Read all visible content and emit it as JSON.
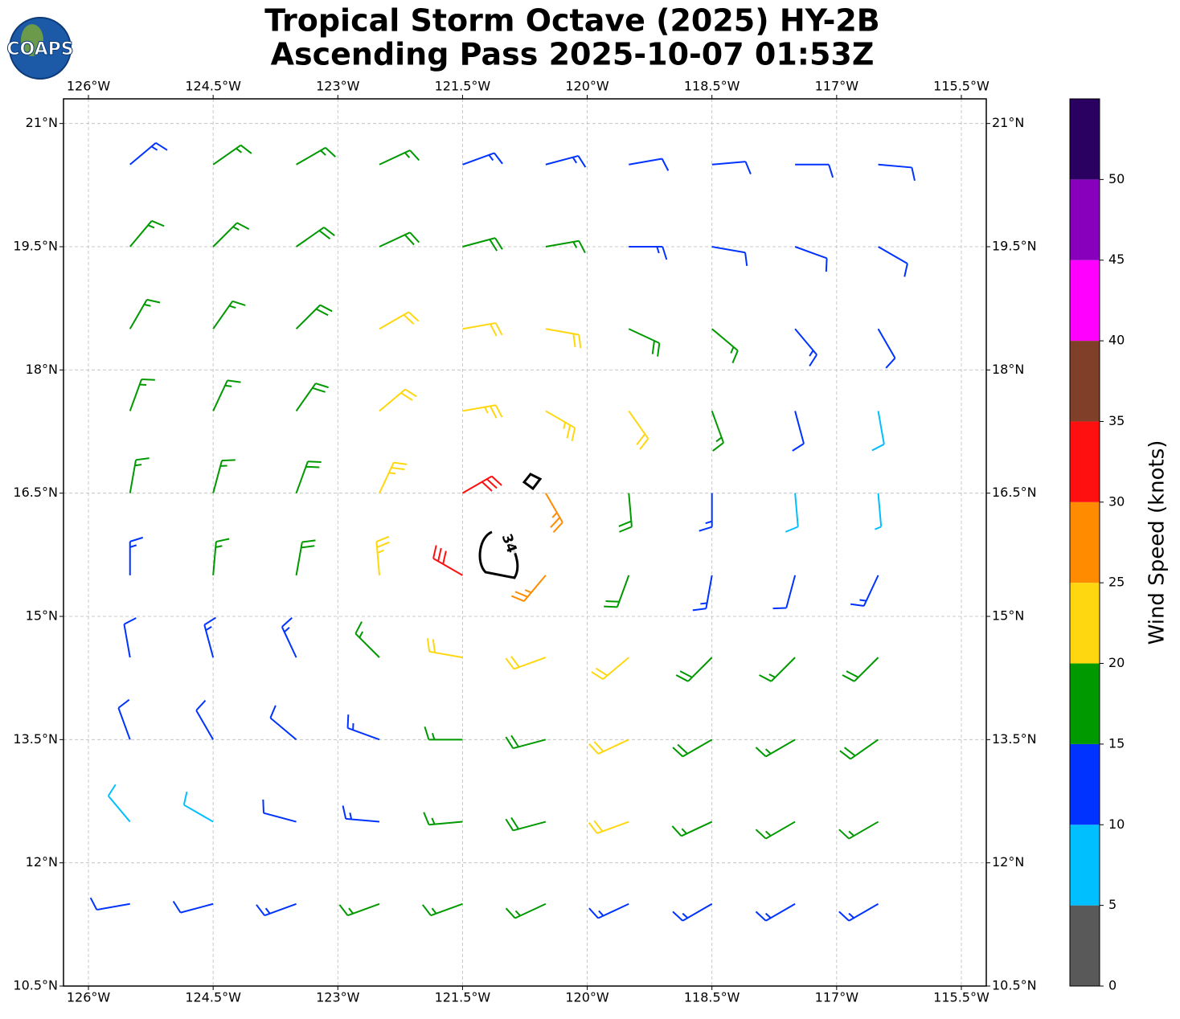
{
  "logo": "COAPS",
  "title": "Tropical Storm Octave (2025) HY-2B",
  "subtitle": "Ascending Pass 2025-10-07 01:53Z",
  "map": {
    "type": "barbs",
    "xlim": [
      -126.3,
      -115.2
    ],
    "ylim": [
      10.5,
      21.3
    ],
    "grid": true,
    "xticks": [
      {
        "value": -126,
        "label": "126°W"
      },
      {
        "value": -124.5,
        "label": "124.5°W"
      },
      {
        "value": -123,
        "label": "123°W"
      },
      {
        "value": -121.5,
        "label": "121.5°W"
      },
      {
        "value": -120,
        "label": "120°W"
      },
      {
        "value": -118.5,
        "label": "118.5°W"
      },
      {
        "value": -117,
        "label": "117°W"
      },
      {
        "value": -115.5,
        "label": "115.5°W"
      }
    ],
    "yticks": [
      {
        "value": 10.5,
        "label": "10.5°N"
      },
      {
        "value": 12,
        "label": "12°N"
      },
      {
        "value": 13.5,
        "label": "13.5°N"
      },
      {
        "value": 15,
        "label": "15°N"
      },
      {
        "value": 16.5,
        "label": "16.5°N"
      },
      {
        "value": 18,
        "label": "18°N"
      },
      {
        "value": 19.5,
        "label": "19.5°N"
      },
      {
        "value": 21,
        "label": "21°N"
      }
    ],
    "lons": [
      -125.5,
      -124.5,
      -123.5,
      -122.5,
      -121.5,
      -120.5,
      -119.5,
      -118.5,
      -117.5,
      -116.5
    ],
    "lats": [
      20.5,
      19.5,
      18.5,
      17.5,
      16.5,
      15.5,
      14.5,
      13.5,
      12.5,
      11.5
    ],
    "speed": [
      [
        14,
        16,
        17,
        16,
        14,
        13,
        12,
        12,
        11,
        11
      ],
      [
        17,
        17,
        18,
        19,
        19,
        17,
        14,
        12,
        11,
        12
      ],
      [
        16,
        17,
        19,
        21,
        22,
        22,
        19,
        16,
        14,
        12
      ],
      [
        16,
        17,
        19,
        22,
        24,
        23,
        20,
        16,
        12,
        8
      ],
      [
        15,
        17,
        19,
        23,
        30,
        27,
        18,
        13,
        9,
        7
      ],
      [
        14,
        16,
        18,
        23,
        32,
        27,
        18,
        13,
        11,
        14
      ],
      [
        12,
        13,
        14,
        17,
        22,
        22,
        20,
        18,
        17,
        18
      ],
      [
        10,
        11,
        12,
        14,
        17,
        18,
        21,
        19,
        17,
        18
      ],
      [
        8,
        8,
        10,
        13,
        16,
        19,
        20,
        17,
        16,
        17
      ],
      [
        12,
        12,
        14,
        17,
        17,
        16,
        14,
        13,
        13,
        13
      ]
    ],
    "direction": [
      [
        50,
        55,
        60,
        65,
        70,
        75,
        80,
        85,
        90,
        95
      ],
      [
        40,
        45,
        55,
        65,
        75,
        80,
        90,
        100,
        110,
        120
      ],
      [
        30,
        35,
        45,
        60,
        80,
        100,
        115,
        130,
        140,
        150
      ],
      [
        20,
        25,
        35,
        50,
        80,
        120,
        145,
        160,
        165,
        170
      ],
      [
        10,
        15,
        20,
        25,
        60,
        150,
        175,
        180,
        175,
        175
      ],
      [
        0,
        5,
        10,
        355,
        300,
        220,
        200,
        190,
        195,
        205
      ],
      [
        350,
        345,
        335,
        315,
        280,
        250,
        230,
        225,
        225,
        225
      ],
      [
        340,
        330,
        310,
        290,
        270,
        255,
        245,
        240,
        240,
        235
      ],
      [
        320,
        300,
        285,
        275,
        265,
        255,
        250,
        245,
        240,
        240
      ],
      [
        260,
        255,
        250,
        250,
        250,
        245,
        245,
        240,
        240,
        240
      ]
    ],
    "contour_label": 34
  },
  "colorbar": {
    "label": "Wind Speed (knots)",
    "bounds": [
      0,
      5,
      10,
      15,
      20,
      25,
      30,
      35,
      40,
      45,
      50,
      55
    ],
    "colors": [
      "#595959",
      "#00bfff",
      "#0033ff",
      "#009900",
      "#ffd711",
      "#ff8c00",
      "#ff1010",
      "#7f3f28",
      "#ff00ff",
      "#8800bb",
      "#2a0060"
    ],
    "ticks": [
      0,
      5,
      10,
      15,
      20,
      25,
      30,
      35,
      40,
      45,
      50
    ]
  }
}
